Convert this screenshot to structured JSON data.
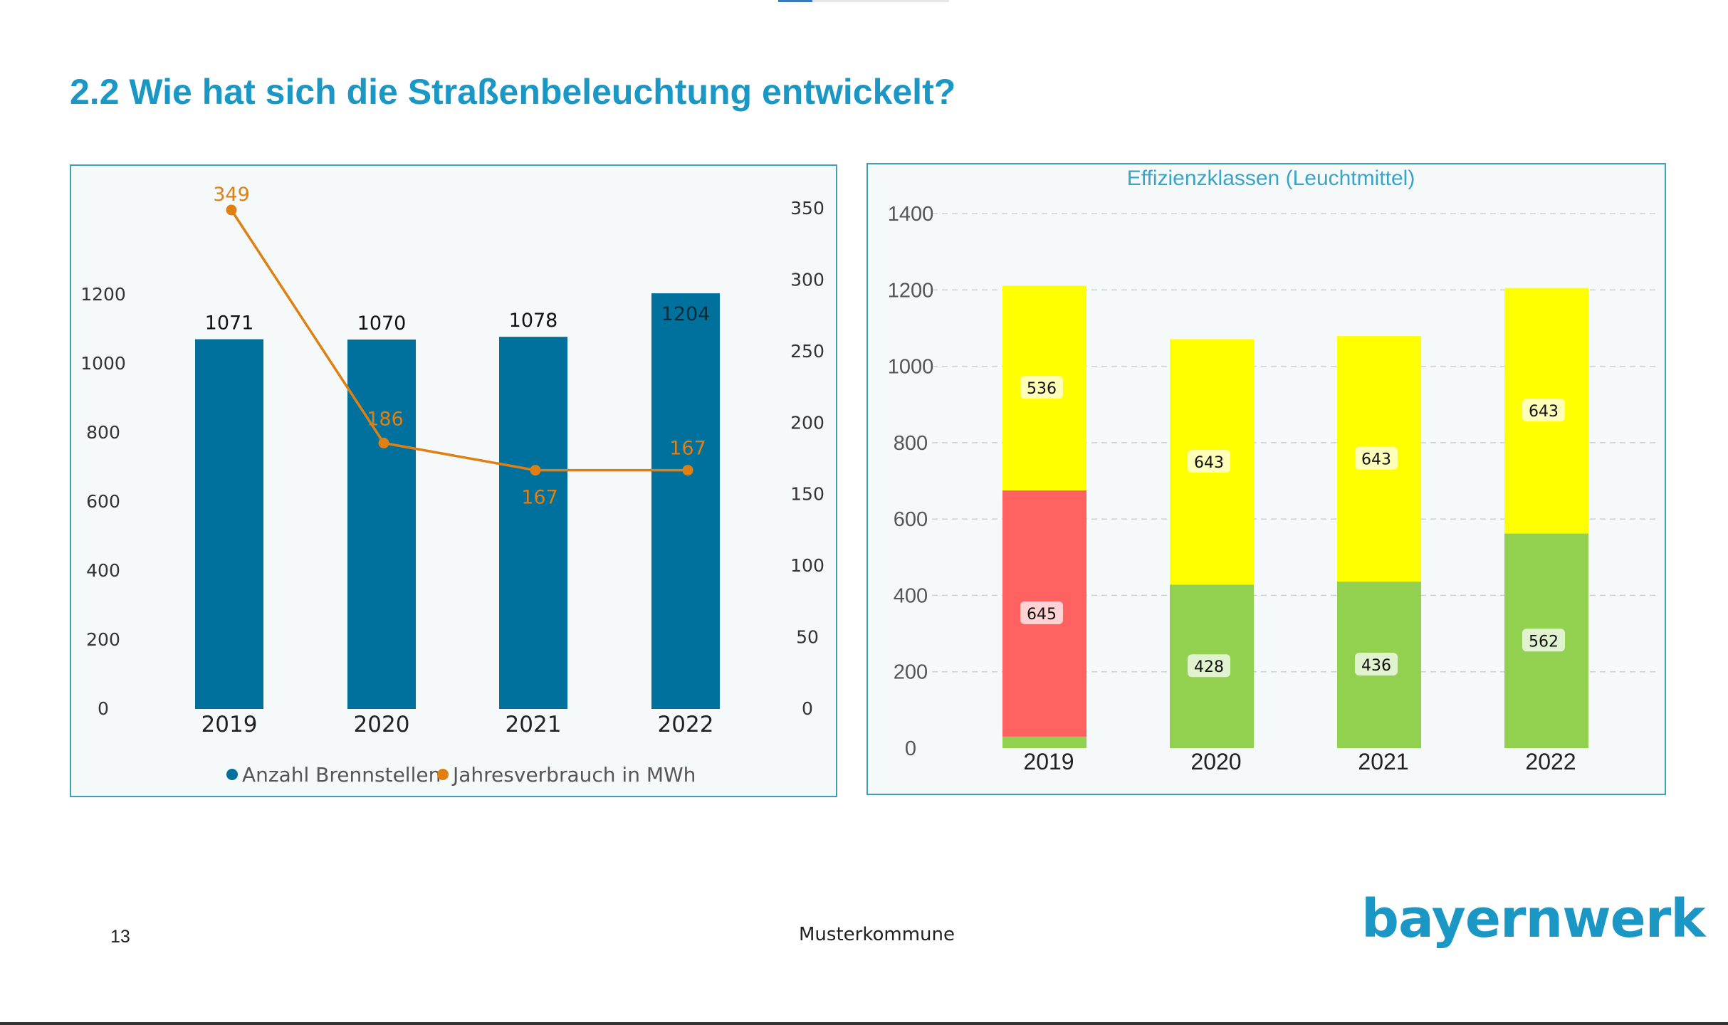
{
  "page": {
    "title": "2.2 Wie hat sich die Straßenbeleuchtung entwickelt?",
    "page_number": "13",
    "footer_center": "Musterkommune",
    "logo_text": "bayernwerk"
  },
  "colors": {
    "title": "#1a97c4",
    "bar": "#00719c",
    "line": "#e07f12",
    "green": "#92d050",
    "yellow": "#ffff00",
    "red": "#ff6260"
  },
  "chart_data": [
    {
      "type": "bar",
      "title": "",
      "categories": [
        "2019",
        "2020",
        "2021",
        "2022"
      ],
      "y_left_ticks": [
        "0",
        "200",
        "400",
        "600",
        "800",
        "1000",
        "1200"
      ],
      "y_right_ticks": [
        "0",
        "50",
        "100",
        "150",
        "200",
        "250",
        "300",
        "350"
      ],
      "ylim_left": [
        0,
        1200
      ],
      "ylim_right": [
        0,
        350
      ],
      "series": [
        {
          "name": "Anzahl Brennstellen",
          "kind": "bar",
          "axis": "left",
          "values": [
            1071,
            1070,
            1078,
            1204
          ],
          "labels": [
            "1071",
            "1070",
            "1078",
            "1204"
          ]
        },
        {
          "name": "Jahresverbrauch in MWh",
          "kind": "line",
          "axis": "right",
          "values": [
            349,
            186,
            167,
            167
          ],
          "labels": [
            "349",
            "186",
            "167",
            "167"
          ]
        }
      ],
      "legend_position": "bottom",
      "grid": false
    },
    {
      "type": "bar",
      "stacked": true,
      "title": "Effizienzklassen (Leuchtmittel)",
      "categories": [
        "2019",
        "2020",
        "2021",
        "2022"
      ],
      "y_ticks": [
        "0",
        "200",
        "400",
        "600",
        "800",
        "1000",
        "1200",
        "1400"
      ],
      "ylim": [
        0,
        1400
      ],
      "series": [
        {
          "color": "green",
          "values": [
            30,
            428,
            436,
            562
          ],
          "labels": [
            "",
            "428",
            "436",
            "562"
          ]
        },
        {
          "color": "red",
          "values": [
            645,
            0,
            0,
            0
          ],
          "labels": [
            "645",
            "",
            "",
            ""
          ]
        },
        {
          "color": "yellow",
          "values": [
            536,
            643,
            643,
            643
          ],
          "labels": [
            "536",
            "643",
            "643",
            "643"
          ]
        }
      ],
      "grid": true,
      "legend_position": "none"
    }
  ]
}
